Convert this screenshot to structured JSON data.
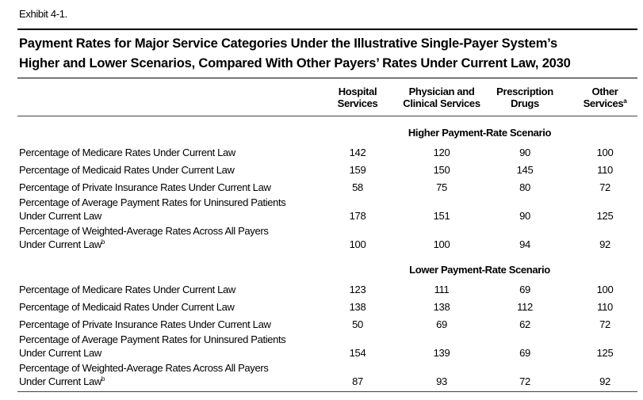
{
  "exhibit": "Exhibit 4-1.",
  "title": [
    "Payment Rates for Major Service Categories Under the Illustrative Single-Payer System’s",
    "Higher and Lower Scenarios, Compared With Other Payers’ Rates Under Current Law, 2030"
  ],
  "columns": [
    {
      "lines": [
        "Hospital",
        "Services"
      ]
    },
    {
      "lines": [
        "Physician and",
        "Clinical Services"
      ]
    },
    {
      "lines": [
        "Prescription",
        "Drugs"
      ]
    },
    {
      "lines": [
        "Other",
        "Services"
      ],
      "note": "a"
    }
  ],
  "sections": [
    {
      "title": "Higher Payment-Rate Scenario",
      "rows": [
        {
          "label": [
            "Percentage of Medicare Rates Under Current Law"
          ],
          "values": [
            142,
            120,
            90,
            100
          ]
        },
        {
          "label": [
            "Percentage of Medicaid Rates Under Current Law"
          ],
          "values": [
            159,
            150,
            145,
            110
          ]
        },
        {
          "label": [
            "Percentage of Private Insurance Rates Under Current Law"
          ],
          "values": [
            58,
            75,
            80,
            72
          ]
        },
        {
          "label": [
            "Percentage of Average Payment Rates for Uninsured Patients",
            "Under Current Law"
          ],
          "values": [
            178,
            151,
            90,
            125
          ]
        },
        {
          "label": [
            "Percentage of Weighted-Average Rates Across All Payers",
            "Under Current Law"
          ],
          "note": "b",
          "values": [
            100,
            100,
            94,
            92
          ]
        }
      ]
    },
    {
      "title": "Lower Payment-Rate Scenario",
      "rows": [
        {
          "label": [
            "Percentage of Medicare Rates Under Current Law"
          ],
          "values": [
            123,
            111,
            69,
            100
          ]
        },
        {
          "label": [
            "Percentage of Medicaid Rates Under Current Law"
          ],
          "values": [
            138,
            138,
            112,
            110
          ]
        },
        {
          "label": [
            "Percentage of Private Insurance Rates Under Current Law"
          ],
          "values": [
            50,
            69,
            62,
            72
          ]
        },
        {
          "label": [
            "Percentage of Average Payment Rates for Uninsured Patients",
            "Under Current Law"
          ],
          "values": [
            154,
            139,
            69,
            125
          ]
        },
        {
          "label": [
            "Percentage of Weighted-Average Rates Across All Payers",
            "Under Current Law"
          ],
          "note": "b",
          "values": [
            87,
            93,
            72,
            92
          ]
        }
      ]
    }
  ]
}
